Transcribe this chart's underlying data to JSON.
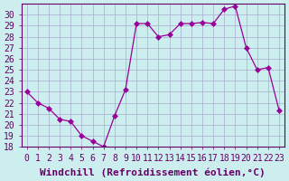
{
  "x": [
    0,
    1,
    2,
    3,
    4,
    5,
    6,
    7,
    8,
    9,
    10,
    11,
    12,
    13,
    14,
    15,
    16,
    17,
    18,
    19,
    20,
    21,
    22,
    23
  ],
  "y": [
    23,
    22,
    21.5,
    20.5,
    20.3,
    19,
    18.5,
    18,
    20.8,
    23.2,
    29.2,
    29.2,
    28,
    28.2,
    29.2,
    29.2,
    29.3,
    29.2,
    30.5,
    30.8,
    27,
    25,
    25.2,
    21.3
  ],
  "line_color": "#990099",
  "marker": "D",
  "markersize": 3,
  "bg_color": "#cceeee",
  "grid_color": "#aaaacc",
  "xlabel": "Windchill (Refroidissement éolien,°C)",
  "ylim": [
    18,
    31
  ],
  "xlim": [
    -0.5,
    23.5
  ],
  "yticks": [
    18,
    19,
    20,
    21,
    22,
    23,
    24,
    25,
    26,
    27,
    28,
    29,
    30
  ],
  "xticks": [
    0,
    1,
    2,
    3,
    4,
    5,
    6,
    7,
    8,
    9,
    10,
    11,
    12,
    13,
    14,
    15,
    16,
    17,
    18,
    19,
    20,
    21,
    22,
    23
  ],
  "tick_color": "#660066",
  "axes_color": "#660066",
  "xlabel_fontsize": 8,
  "tick_fontsize": 7
}
